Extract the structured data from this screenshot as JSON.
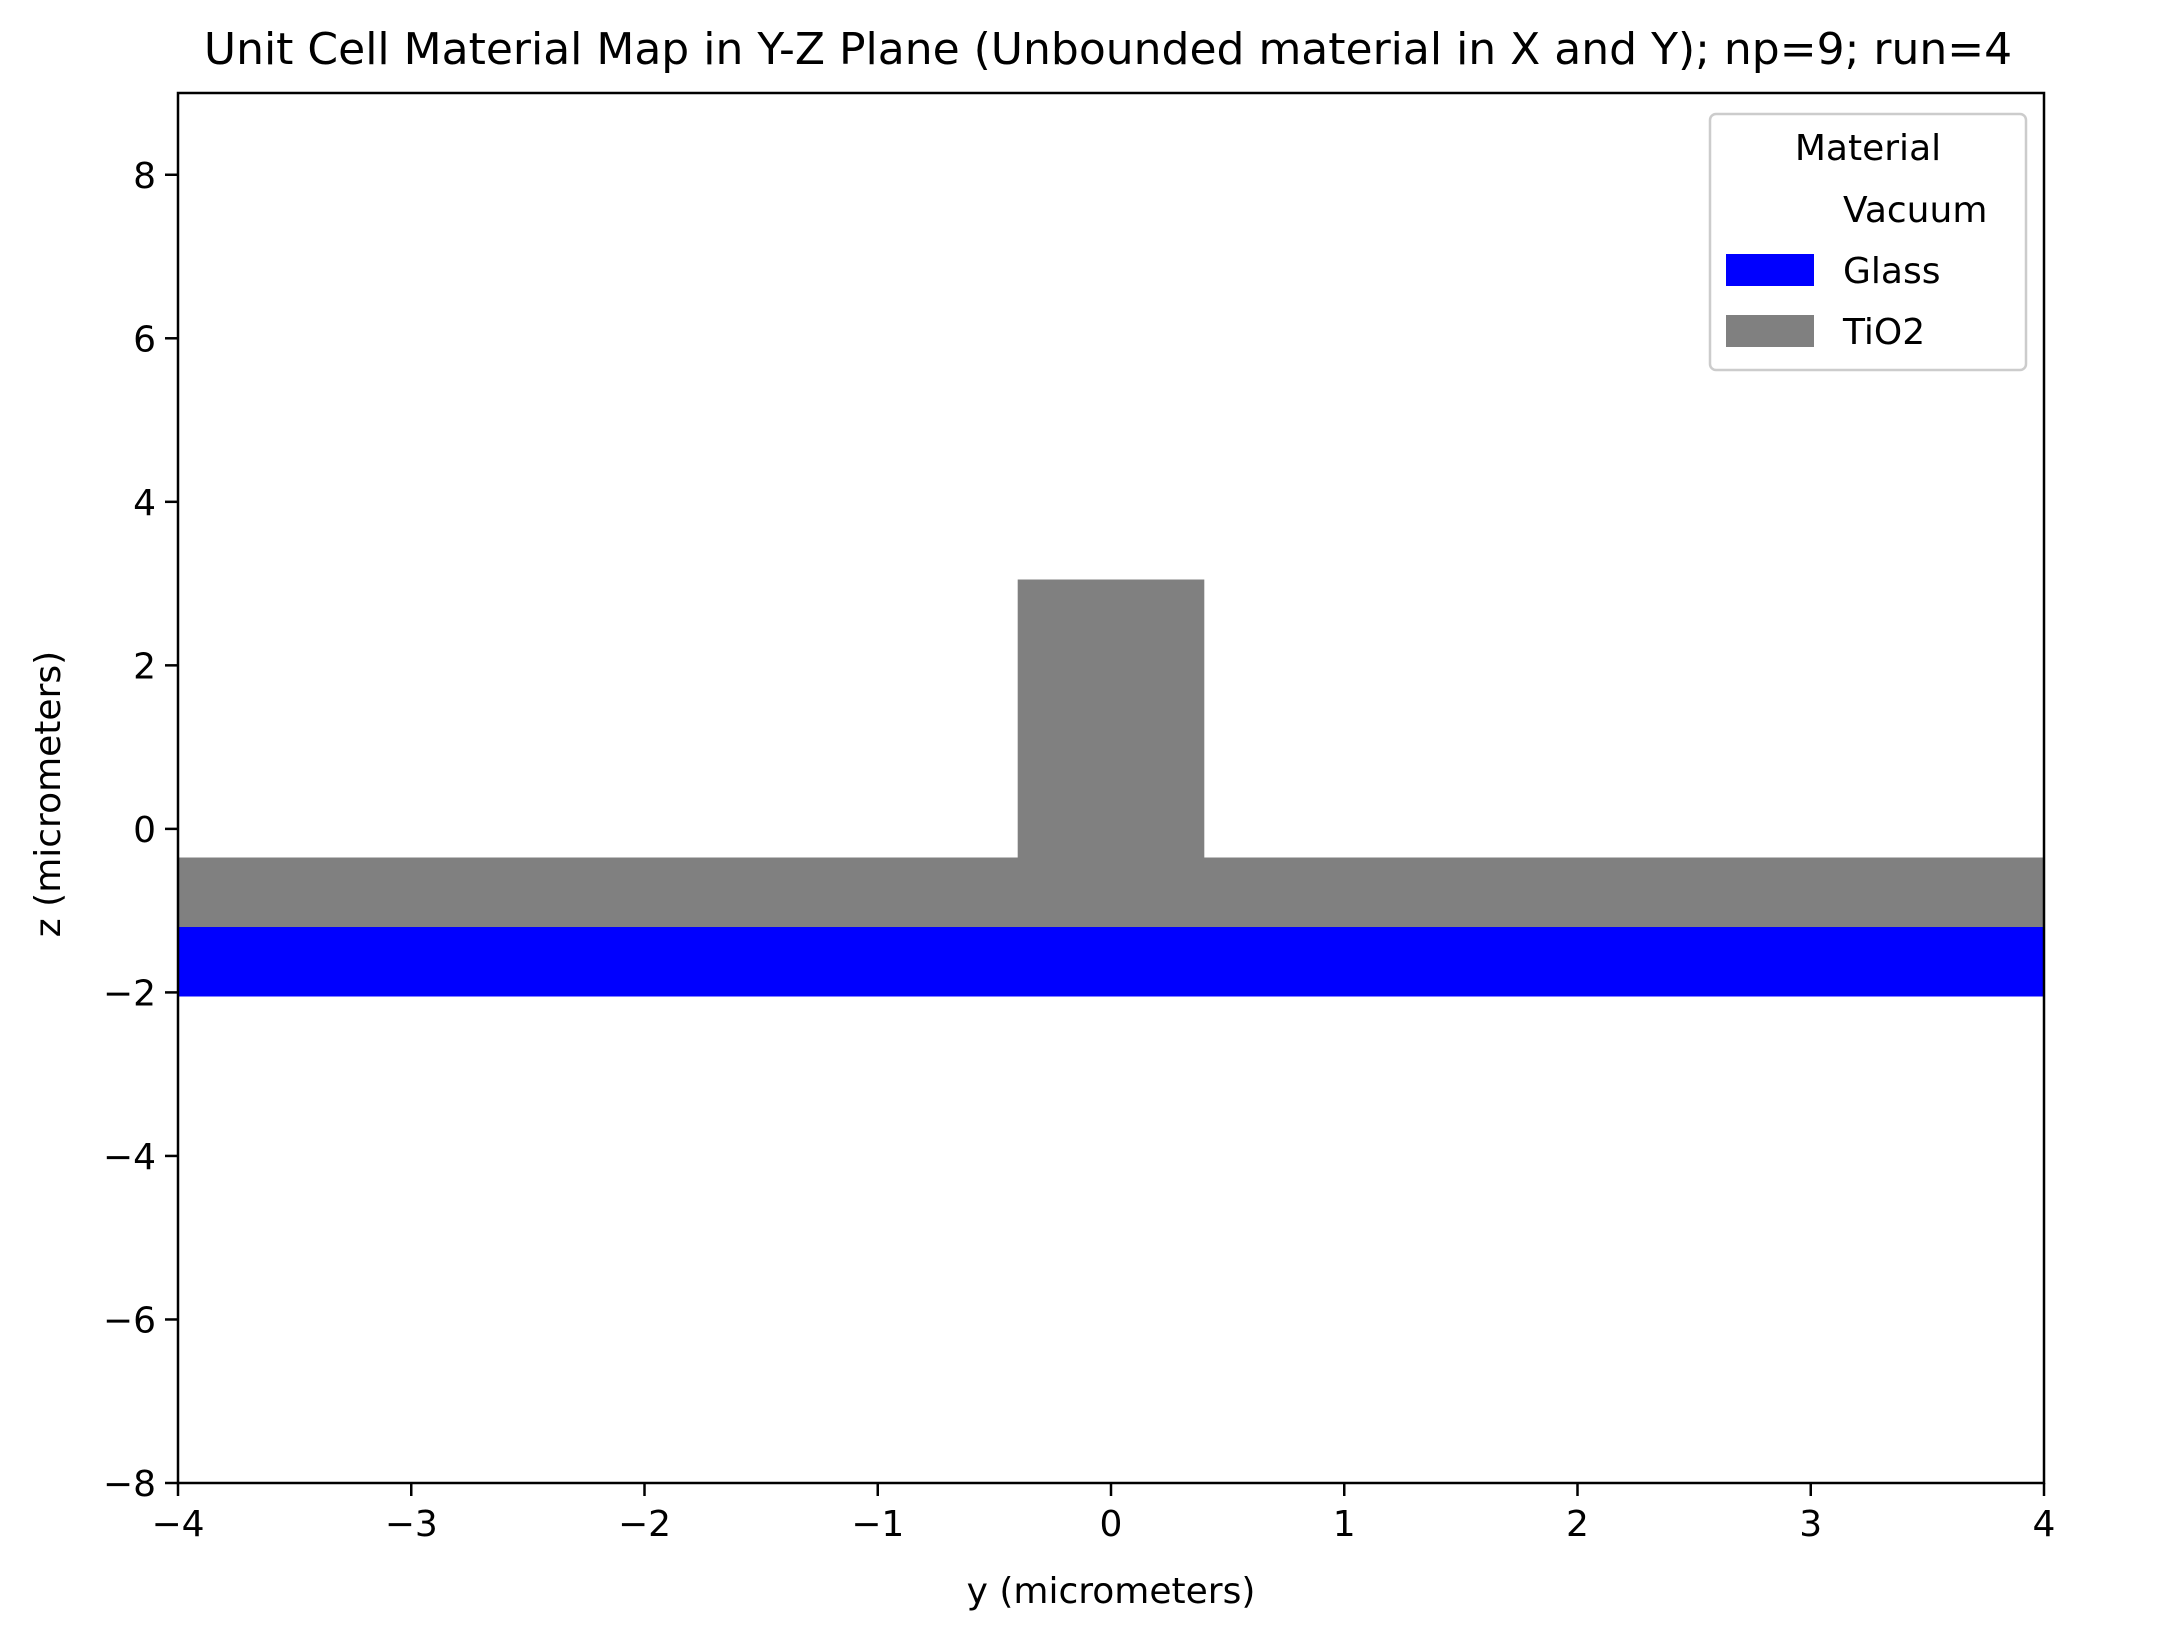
{
  "chart_data": {
    "type": "heatmap",
    "title": "Unit Cell Material Map in Y-Z Plane (Unbounded material in X and Y); np=9; run=4",
    "xlabel": "y (micrometers)",
    "ylabel": "z (micrometers)",
    "xlim": [
      -4,
      4
    ],
    "ylim": [
      -8,
      9
    ],
    "xticks": [
      -4,
      -3,
      -2,
      -1,
      0,
      1,
      2,
      3,
      4
    ],
    "xtick_labels": [
      "−4",
      "−3",
      "−2",
      "−1",
      "0",
      "1",
      "2",
      "3",
      "4"
    ],
    "yticks": [
      -8,
      -6,
      -4,
      -2,
      0,
      2,
      4,
      6,
      8
    ],
    "ytick_labels": [
      "−8",
      "−6",
      "−4",
      "−2",
      "0",
      "2",
      "4",
      "6",
      "8"
    ],
    "grid": false,
    "legend": {
      "title": "Material",
      "position": "top-right",
      "entries": [
        {
          "label": "Vacuum",
          "color": "#ffffff"
        },
        {
          "label": "Glass",
          "color": "#0000ff"
        },
        {
          "label": "TiO2",
          "color": "#808080"
        }
      ]
    },
    "regions": [
      {
        "material": "Glass",
        "color": "#0000ff",
        "y": [
          -4,
          4
        ],
        "z": [
          -2.05,
          -1.2
        ]
      },
      {
        "material": "TiO2",
        "color": "#808080",
        "y": [
          -4,
          4
        ],
        "z": [
          -1.2,
          -0.35
        ]
      },
      {
        "material": "TiO2",
        "color": "#808080",
        "y": [
          -0.4,
          0.4
        ],
        "z": [
          -0.35,
          3.05
        ]
      }
    ]
  }
}
